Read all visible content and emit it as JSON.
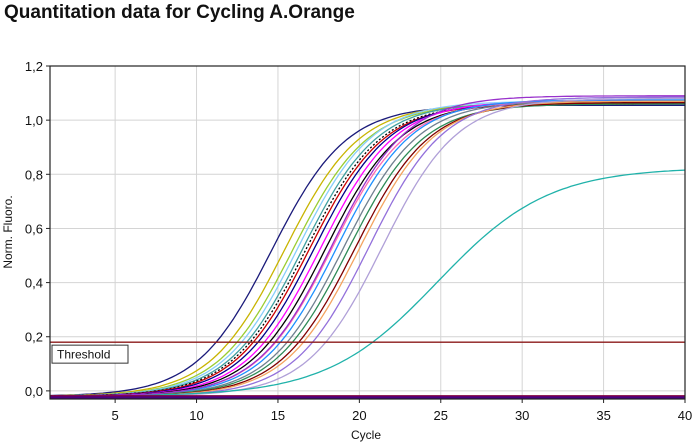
{
  "chart_data": {
    "type": "line",
    "title": "Quantitation data for Cycling A.Orange",
    "xlabel": "Cycle",
    "ylabel": "Norm. Fluoro.",
    "xlim": [
      1,
      40
    ],
    "ylim": [
      -0.03,
      1.2
    ],
    "x_ticks": [
      5,
      10,
      15,
      20,
      25,
      30,
      35,
      40
    ],
    "x_tick_labels": [
      "5",
      "10",
      "15",
      "20",
      "25",
      "30",
      "35",
      "40"
    ],
    "y_ticks": [
      0.0,
      0.2,
      0.4,
      0.6,
      0.8,
      1.0,
      1.2
    ],
    "y_tick_labels": [
      "0,0",
      "0,2",
      "0,4",
      "0,6",
      "0,8",
      "1,0",
      "1,2"
    ],
    "grid": true,
    "threshold": {
      "label": "Threshold",
      "value": 0.18,
      "color": "#8b1a1a"
    },
    "series": [
      {
        "color": "#1a1a7a",
        "midpoint": 14.6,
        "slope": 2.3,
        "plateau": 1.075
      },
      {
        "color": "#c8b400",
        "midpoint": 15.4,
        "slope": 2.3,
        "plateau": 1.08
      },
      {
        "color": "#9acd32",
        "midpoint": 15.9,
        "slope": 2.3,
        "plateau": 1.08
      },
      {
        "color": "#87cefa",
        "midpoint": 16.2,
        "slope": 2.3,
        "plateau": 1.09
      },
      {
        "color": "#40a0a0",
        "midpoint": 16.5,
        "slope": 2.3,
        "plateau": 1.085
      },
      {
        "color": "#000000",
        "midpoint": 16.7,
        "slope": 2.3,
        "plateau": 1.08,
        "dashed": true
      },
      {
        "color": "#cc0000",
        "midpoint": 16.9,
        "slope": 2.3,
        "plateau": 1.08
      },
      {
        "color": "#00008b",
        "midpoint": 17.2,
        "slope": 2.3,
        "plateau": 1.085
      },
      {
        "color": "#ff00ff",
        "midpoint": 17.6,
        "slope": 2.3,
        "plateau": 1.09
      },
      {
        "color": "#000000",
        "midpoint": 17.9,
        "slope": 2.3,
        "plateau": 1.085
      },
      {
        "color": "#ff69b4",
        "midpoint": 18.3,
        "slope": 2.3,
        "plateau": 1.09
      },
      {
        "color": "#1e90ff",
        "midpoint": 18.6,
        "slope": 2.3,
        "plateau": 1.095
      },
      {
        "color": "#708090",
        "midpoint": 19.0,
        "slope": 2.3,
        "plateau": 1.09
      },
      {
        "color": "#2e8b57",
        "midpoint": 19.3,
        "slope": 2.3,
        "plateau": 1.08
      },
      {
        "color": "#800000",
        "midpoint": 19.7,
        "slope": 2.3,
        "plateau": 1.085
      },
      {
        "color": "#f4a460",
        "midpoint": 20.0,
        "slope": 2.3,
        "plateau": 1.09
      },
      {
        "color": "#9370db",
        "midpoint": 20.6,
        "slope": 2.3,
        "plateau": 1.105
      },
      {
        "color": "#b0a0d8",
        "midpoint": 21.4,
        "slope": 2.3,
        "plateau": 1.1
      },
      {
        "color": "#20b2aa",
        "midpoint": 24.8,
        "slope": 3.4,
        "plateau": 0.845
      },
      {
        "color": "#9932cc",
        "midpoint": 18.3,
        "slope": 2.3,
        "plateau": 1.11
      },
      {
        "color": "#800040",
        "flat_value": -0.02
      },
      {
        "color": "#4b0082",
        "flat_value": -0.025
      }
    ]
  }
}
